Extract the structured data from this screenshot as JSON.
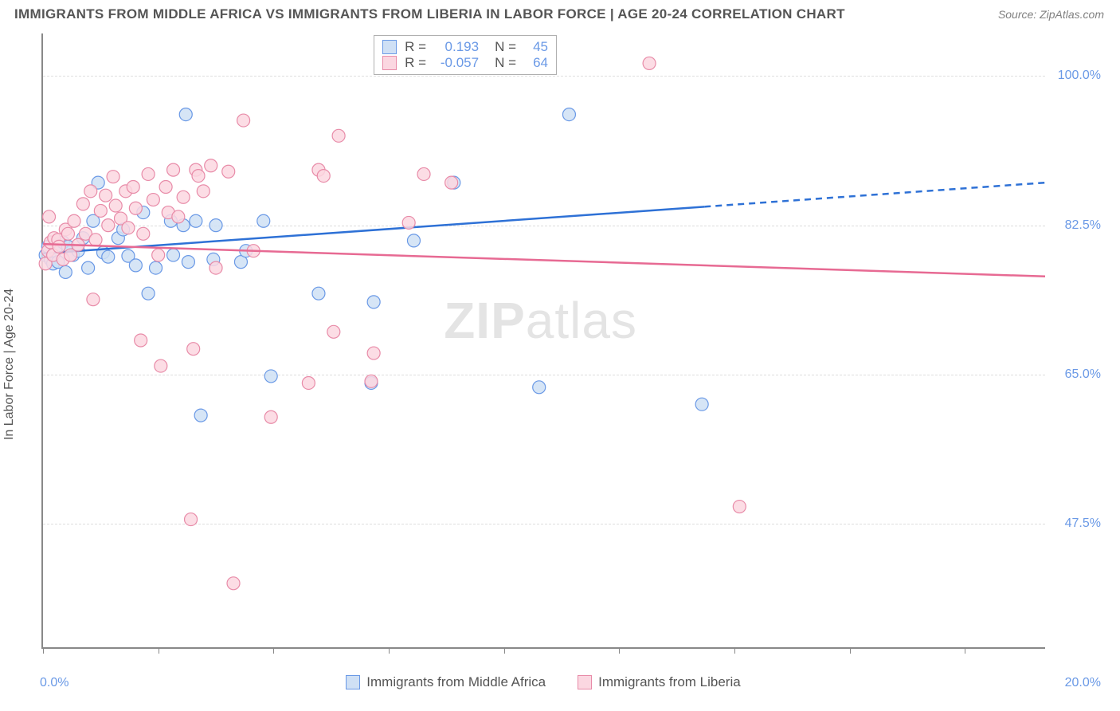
{
  "title": "IMMIGRANTS FROM MIDDLE AFRICA VS IMMIGRANTS FROM LIBERIA IN LABOR FORCE | AGE 20-24 CORRELATION CHART",
  "source": "Source: ZipAtlas.com",
  "watermark": {
    "bold": "ZIP",
    "thin": "atlas"
  },
  "ylabel": "In Labor Force | Age 20-24",
  "chart": {
    "type": "scatter",
    "background_color": "#ffffff",
    "grid_color": "#dddddd",
    "axis_color": "#888888",
    "xlim": [
      0,
      20
    ],
    "ylim": [
      33,
      105
    ],
    "xtick_positions": [
      0,
      2.3,
      4.6,
      6.9,
      9.2,
      11.5,
      13.8,
      16.1,
      18.4
    ],
    "xtick_labels": {
      "left": "0.0%",
      "right": "20.0%"
    },
    "ytick_positions": [
      47.5,
      65.0,
      82.5,
      100.0
    ],
    "ytick_labels": [
      "47.5%",
      "65.0%",
      "82.5%",
      "100.0%"
    ],
    "marker_radius": 8,
    "marker_stroke_width": 1.2,
    "line_width": 2.5,
    "label_fontsize": 16,
    "tick_color": "#6a99e6"
  },
  "series": [
    {
      "name": "Immigrants from Middle Africa",
      "fill": "#cfe0f5",
      "stroke": "#6a99e6",
      "line_color": "#2e71d6",
      "R": "0.193",
      "N": "45",
      "trend": {
        "x1": 0,
        "y1": 79.2,
        "x2": 20,
        "y2": 87.5,
        "solid_xend": 13.2
      },
      "points": [
        [
          0.05,
          79
        ],
        [
          0.1,
          80
        ],
        [
          0.15,
          78.5
        ],
        [
          0.2,
          78
        ],
        [
          0.25,
          79.5
        ],
        [
          0.3,
          78.2
        ],
        [
          0.4,
          80.5
        ],
        [
          0.45,
          77
        ],
        [
          0.5,
          80
        ],
        [
          0.6,
          79
        ],
        [
          0.7,
          79.5
        ],
        [
          0.8,
          81
        ],
        [
          0.9,
          77.5
        ],
        [
          1.0,
          83
        ],
        [
          1.1,
          87.5
        ],
        [
          1.2,
          79.3
        ],
        [
          1.3,
          78.8
        ],
        [
          1.5,
          81
        ],
        [
          1.6,
          82
        ],
        [
          1.7,
          78.9
        ],
        [
          1.85,
          77.8
        ],
        [
          2.0,
          84
        ],
        [
          2.1,
          74.5
        ],
        [
          2.25,
          77.5
        ],
        [
          2.55,
          83
        ],
        [
          2.6,
          79
        ],
        [
          2.8,
          82.5
        ],
        [
          2.85,
          95.5
        ],
        [
          2.9,
          78.2
        ],
        [
          3.05,
          83
        ],
        [
          3.15,
          60.2
        ],
        [
          3.4,
          78.5
        ],
        [
          3.45,
          82.5
        ],
        [
          3.95,
          78.2
        ],
        [
          4.05,
          79.5
        ],
        [
          4.4,
          83
        ],
        [
          4.55,
          64.8
        ],
        [
          5.5,
          74.5
        ],
        [
          6.55,
          64
        ],
        [
          6.6,
          73.5
        ],
        [
          7.4,
          80.7
        ],
        [
          8.2,
          87.5
        ],
        [
          9.9,
          63.5
        ],
        [
          10.5,
          95.5
        ],
        [
          13.15,
          61.5
        ]
      ]
    },
    {
      "name": "Immigrants from Liberia",
      "fill": "#fbd7e1",
      "stroke": "#e88ba8",
      "line_color": "#e76a93",
      "R": "-0.057",
      "N": "64",
      "trend": {
        "x1": 0,
        "y1": 80.3,
        "x2": 20,
        "y2": 76.5,
        "solid_xend": 20
      },
      "points": [
        [
          0.05,
          78
        ],
        [
          0.1,
          79.5
        ],
        [
          0.12,
          83.5
        ],
        [
          0.15,
          80.5
        ],
        [
          0.2,
          79
        ],
        [
          0.22,
          81
        ],
        [
          0.3,
          80.8
        ],
        [
          0.32,
          80
        ],
        [
          0.4,
          78.5
        ],
        [
          0.45,
          82
        ],
        [
          0.5,
          81.5
        ],
        [
          0.55,
          79
        ],
        [
          0.62,
          83
        ],
        [
          0.7,
          80.2
        ],
        [
          0.8,
          85
        ],
        [
          0.85,
          81.5
        ],
        [
          0.95,
          86.5
        ],
        [
          1.0,
          73.8
        ],
        [
          1.05,
          80.8
        ],
        [
          1.15,
          84.2
        ],
        [
          1.25,
          86
        ],
        [
          1.3,
          82.5
        ],
        [
          1.4,
          88.2
        ],
        [
          1.45,
          84.8
        ],
        [
          1.55,
          83.3
        ],
        [
          1.65,
          86.5
        ],
        [
          1.7,
          82.2
        ],
        [
          1.8,
          87
        ],
        [
          1.85,
          84.5
        ],
        [
          1.95,
          69
        ],
        [
          2.0,
          81.5
        ],
        [
          2.1,
          88.5
        ],
        [
          2.2,
          85.5
        ],
        [
          2.3,
          79
        ],
        [
          2.35,
          66
        ],
        [
          2.45,
          87
        ],
        [
          2.5,
          84
        ],
        [
          2.6,
          89
        ],
        [
          2.7,
          83.5
        ],
        [
          2.8,
          85.8
        ],
        [
          2.95,
          48
        ],
        [
          3.0,
          68
        ],
        [
          3.05,
          89
        ],
        [
          3.1,
          88.3
        ],
        [
          3.2,
          86.5
        ],
        [
          3.35,
          89.5
        ],
        [
          3.45,
          77.5
        ],
        [
          3.7,
          88.8
        ],
        [
          3.8,
          40.5
        ],
        [
          4.0,
          94.8
        ],
        [
          4.2,
          79.5
        ],
        [
          4.55,
          60
        ],
        [
          5.3,
          64
        ],
        [
          5.5,
          89
        ],
        [
          5.6,
          88.3
        ],
        [
          5.8,
          70
        ],
        [
          5.9,
          93
        ],
        [
          6.55,
          64.2
        ],
        [
          6.6,
          67.5
        ],
        [
          7.3,
          82.8
        ],
        [
          7.6,
          88.5
        ],
        [
          8.15,
          87.5
        ],
        [
          12.1,
          101.5
        ],
        [
          13.9,
          49.5
        ]
      ]
    }
  ],
  "legend_top": {
    "r_label": "R =",
    "n_label": "N ="
  }
}
